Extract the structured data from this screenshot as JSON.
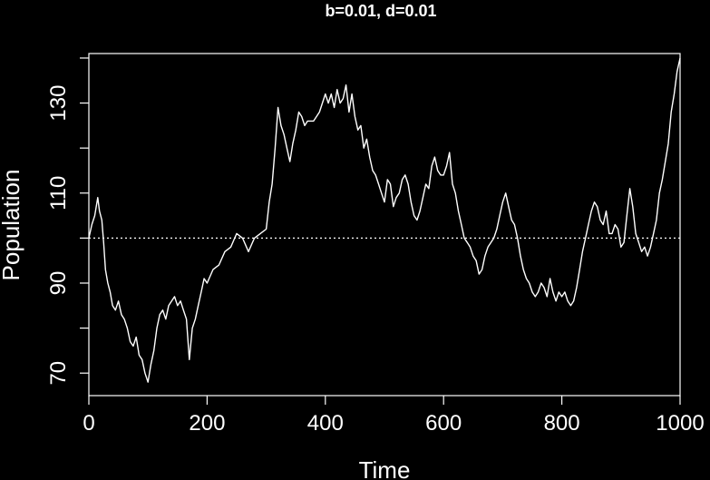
{
  "chart_data": {
    "type": "line",
    "title": "b=0.01, d=0.01",
    "xlabel": "Time",
    "ylabel": "Population",
    "xlim": [
      0,
      1000
    ],
    "ylim": [
      65,
      141
    ],
    "xticks": [
      0,
      200,
      400,
      600,
      800,
      1000
    ],
    "xtick_labels": [
      "0",
      "200",
      "400",
      "600",
      "800",
      "1000"
    ],
    "yticks": [
      70,
      90,
      110,
      130
    ],
    "ytick_labels": [
      "70",
      "90",
      "110",
      "130"
    ],
    "y_minor_ticks": [
      70,
      80,
      90,
      100,
      110,
      120,
      130,
      140
    ],
    "reference_line": {
      "y": 100,
      "style": "dotted"
    },
    "grid": false,
    "colors": {
      "background": "#000000",
      "foreground": "#ffffff"
    },
    "series": [
      {
        "x": [
          0,
          5,
          10,
          15,
          18,
          22,
          25,
          28,
          32,
          36,
          40,
          45,
          50,
          55,
          60,
          65,
          70,
          75,
          80,
          85,
          90,
          95,
          100,
          105,
          110,
          115,
          120,
          125,
          130,
          135,
          140,
          145,
          150,
          155,
          160,
          165,
          170,
          175,
          180,
          185,
          190,
          195,
          200,
          210,
          220,
          230,
          240,
          250,
          260,
          270,
          280,
          290,
          300,
          305,
          310,
          315,
          320,
          325,
          330,
          335,
          340,
          345,
          350,
          355,
          360,
          365,
          370,
          380,
          390,
          400,
          405,
          410,
          415,
          420,
          425,
          430,
          435,
          440,
          445,
          450,
          455,
          460,
          465,
          470,
          475,
          480,
          485,
          490,
          495,
          500,
          505,
          510,
          515,
          520,
          525,
          530,
          535,
          540,
          545,
          550,
          555,
          560,
          565,
          570,
          575,
          580,
          585,
          590,
          595,
          600,
          605,
          610,
          615,
          620,
          625,
          630,
          635,
          640,
          645,
          650,
          655,
          660,
          665,
          670,
          675,
          680,
          685,
          690,
          695,
          700,
          705,
          710,
          715,
          720,
          725,
          730,
          735,
          740,
          745,
          750,
          755,
          760,
          765,
          770,
          775,
          780,
          785,
          790,
          795,
          800,
          805,
          810,
          815,
          820,
          825,
          830,
          835,
          840,
          845,
          850,
          855,
          860,
          865,
          870,
          875,
          880,
          885,
          890,
          895,
          900,
          905,
          910,
          915,
          920,
          925,
          930,
          935,
          940,
          945,
          950,
          955,
          960,
          965,
          970,
          975,
          980,
          985,
          990,
          995,
          1000
        ],
        "y": [
          100,
          103,
          105,
          109,
          106,
          104,
          99,
          93,
          90,
          88,
          85,
          84,
          86,
          83,
          82,
          80,
          77,
          76,
          78,
          74,
          73,
          70,
          68,
          72,
          75,
          80,
          83,
          84,
          82,
          85,
          86,
          87,
          85,
          86,
          84,
          82,
          73,
          80,
          82,
          85,
          88,
          91,
          90,
          93,
          94,
          97,
          98,
          101,
          100,
          97,
          100,
          101,
          102,
          108,
          112,
          120,
          129,
          125,
          123,
          120,
          117,
          121,
          124,
          128,
          127,
          125,
          126,
          126,
          128,
          132,
          130,
          132,
          129,
          133,
          130,
          131,
          134,
          128,
          132,
          127,
          124,
          125,
          120,
          122,
          118,
          115,
          114,
          112,
          110,
          108,
          113,
          112,
          107,
          109,
          110,
          113,
          114,
          112,
          108,
          105,
          104,
          106,
          109,
          112,
          111,
          116,
          118,
          115,
          114,
          114,
          116,
          119,
          112,
          110,
          106,
          103,
          100,
          99,
          98,
          96,
          95,
          92,
          93,
          96,
          98,
          99,
          100,
          102,
          105,
          108,
          110,
          107,
          104,
          103,
          100,
          96,
          93,
          91,
          90,
          88,
          87,
          88,
          90,
          89,
          87,
          91,
          88,
          86,
          88,
          87,
          88,
          86,
          85,
          86,
          89,
          93,
          97,
          100,
          103,
          106,
          108,
          107,
          104,
          103,
          106,
          101,
          101,
          103,
          102,
          98,
          99,
          105,
          111,
          107,
          101,
          99,
          97,
          98,
          96,
          98,
          101,
          104,
          110,
          113,
          117,
          121,
          128,
          132,
          137,
          140
        ]
      }
    ]
  }
}
